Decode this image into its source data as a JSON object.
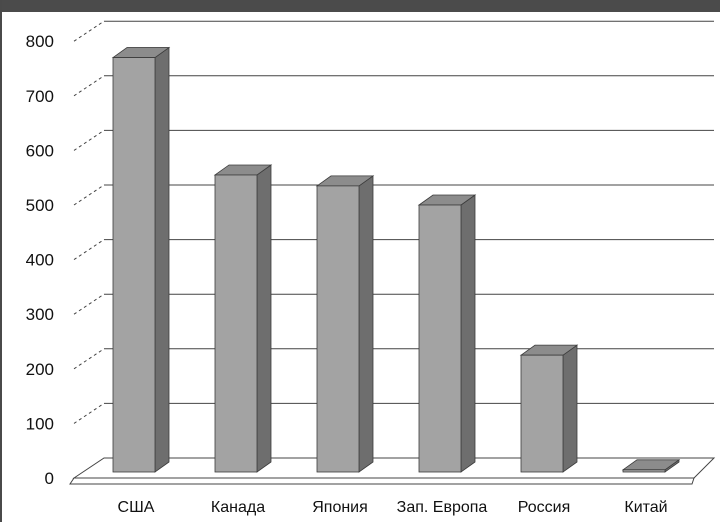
{
  "chart_data": {
    "type": "bar",
    "categories": [
      "США",
      "Канада",
      "Япония",
      "Зап. Европа",
      "Россия",
      "Китай"
    ],
    "values": [
      770,
      555,
      535,
      500,
      225,
      15
    ],
    "ylim": [
      0,
      800
    ],
    "yticks": [
      "0",
      "100",
      "200",
      "300",
      "400",
      "500",
      "600",
      "700",
      "800"
    ],
    "grid": true,
    "three_d": true,
    "colors": {
      "bar_front": "#a3a3a3",
      "bar_side": "#6e6e6e",
      "bar_top": "#8c8c8c",
      "grid": "#444444",
      "floor": "#ffffff"
    }
  }
}
